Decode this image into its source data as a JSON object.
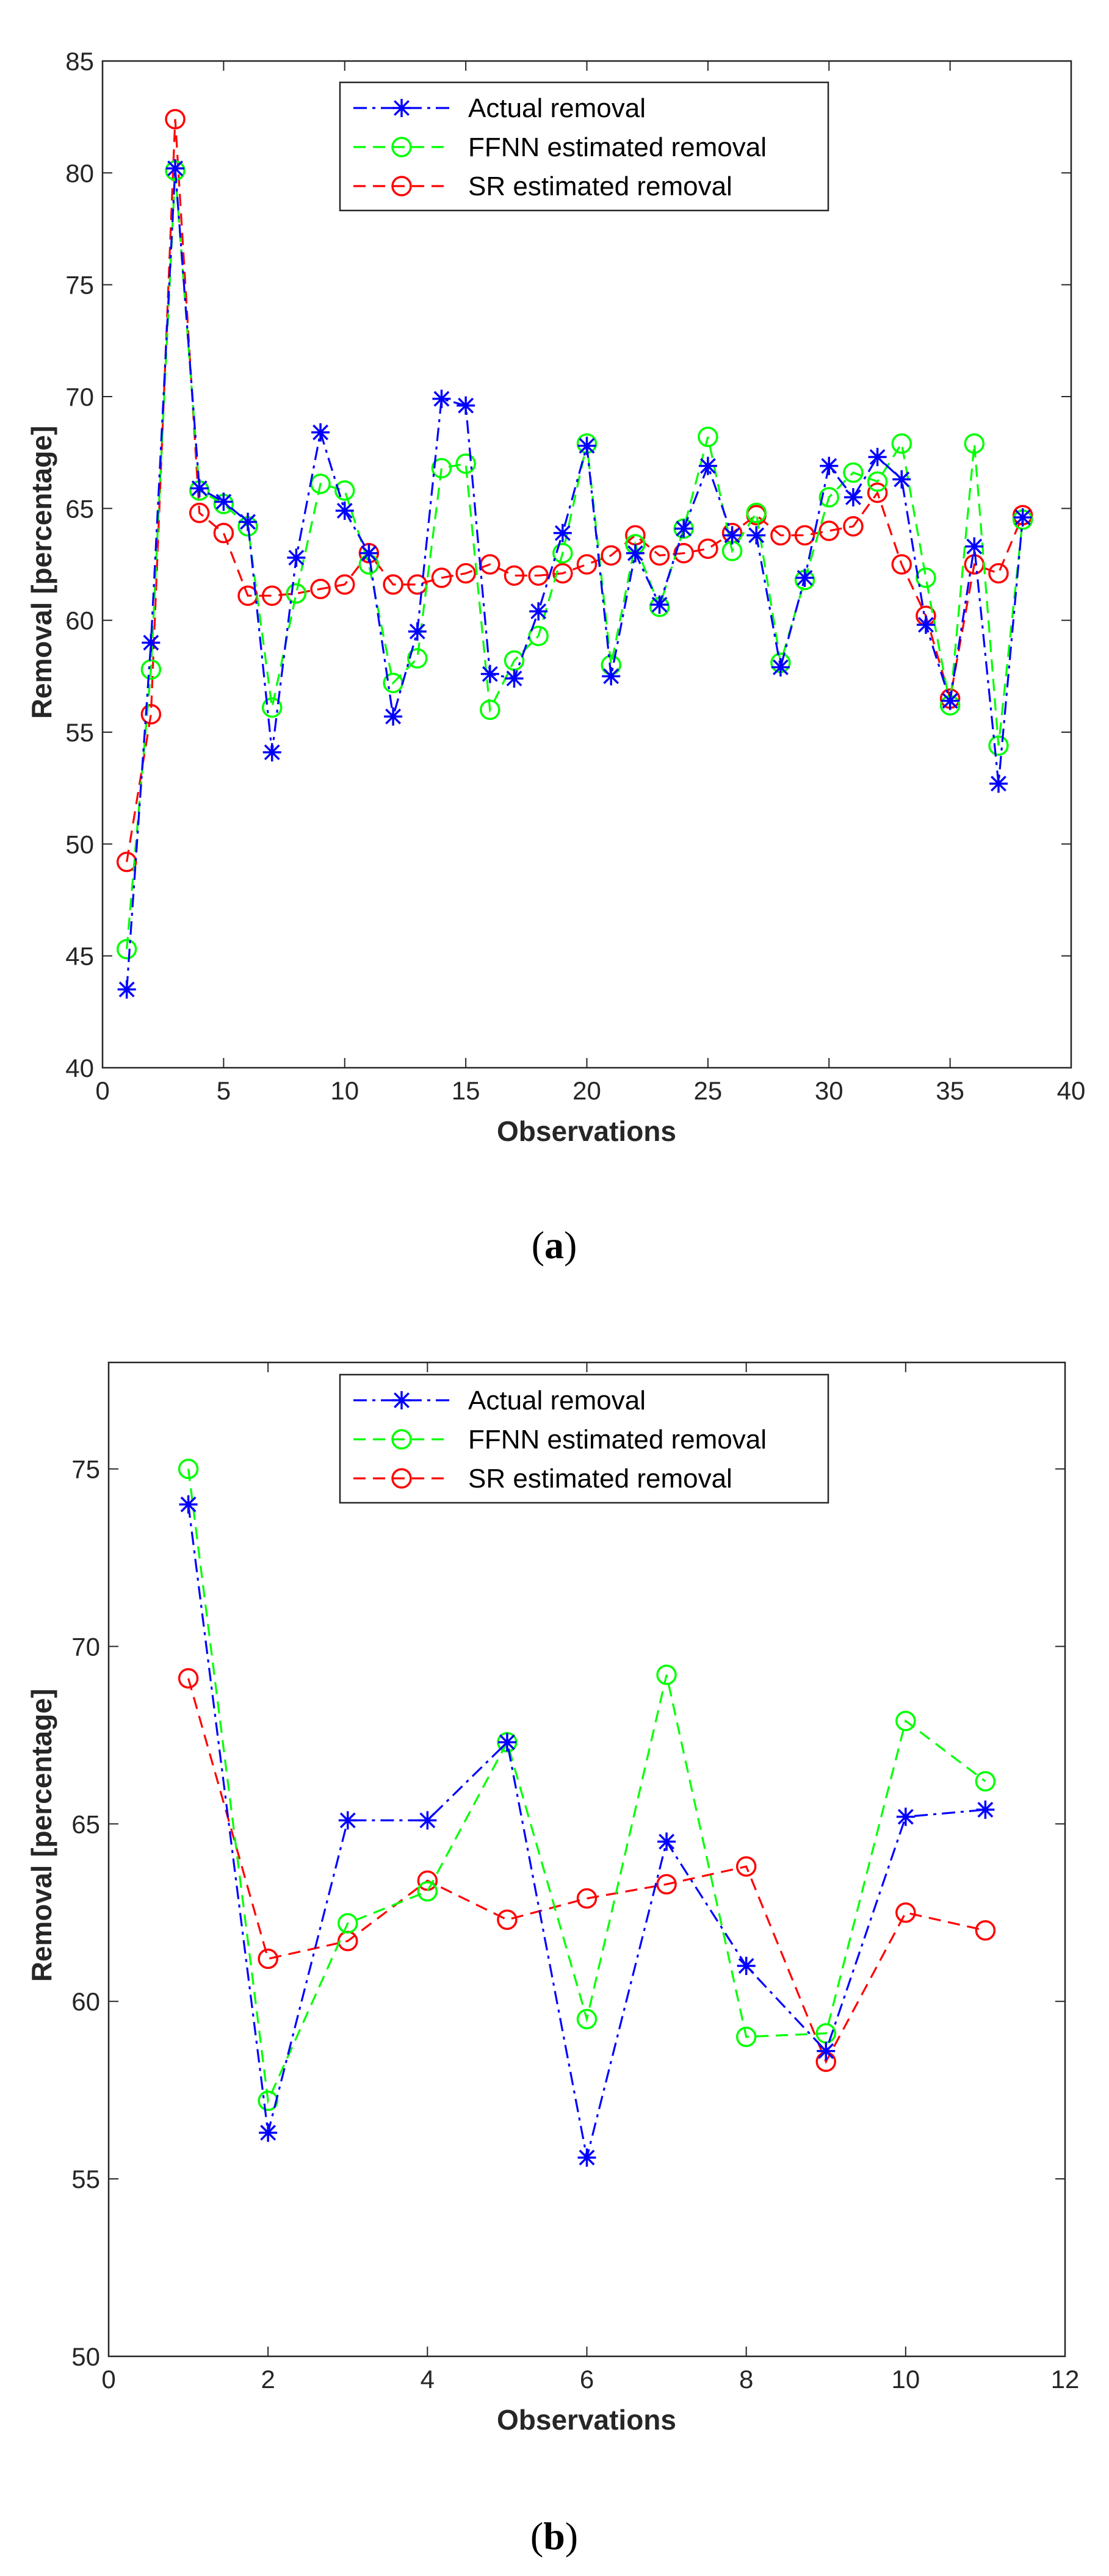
{
  "chart_data": [
    {
      "type": "line",
      "caption": "a",
      "xlabel": "Observations",
      "ylabel": "Removal [percentage]",
      "xlim": [
        0,
        40
      ],
      "ylim": [
        40,
        85
      ],
      "xticks": [
        0,
        5,
        10,
        15,
        20,
        25,
        30,
        35,
        40
      ],
      "yticks": [
        40,
        45,
        50,
        55,
        60,
        65,
        70,
        75,
        80,
        85
      ],
      "legend_position": "top-center",
      "x": [
        1,
        2,
        3,
        4,
        5,
        6,
        7,
        8,
        9,
        10,
        11,
        12,
        13,
        14,
        15,
        16,
        17,
        18,
        19,
        20,
        21,
        22,
        23,
        24,
        25,
        26,
        27,
        28,
        29,
        30,
        31,
        32,
        33,
        34,
        35,
        36,
        37,
        38
      ],
      "series": [
        {
          "name": "Actual removal",
          "color": "#0000ff",
          "marker": "asterisk",
          "line": "dashdot",
          "values": [
            43.5,
            59,
            80.2,
            65.9,
            65.3,
            64.4,
            54.1,
            62.8,
            68.4,
            64.9,
            63,
            55.7,
            59.5,
            69.9,
            69.6,
            57.6,
            57.4,
            60.4,
            63.9,
            67.8,
            57.5,
            63,
            60.7,
            64.1,
            66.9,
            63.8,
            63.8,
            57.9,
            61.9,
            66.9,
            65.5,
            67.3,
            66.3,
            59.8,
            56.4,
            63.3,
            52.7,
            64.6
          ]
        },
        {
          "name": "FFNN estimated removal",
          "color": "#00ff00",
          "marker": "circle",
          "line": "dashed",
          "values": [
            45.3,
            57.8,
            80.1,
            65.8,
            65.2,
            64.2,
            56.1,
            61.2,
            66.1,
            65.8,
            62.5,
            57.2,
            58.3,
            66.8,
            67,
            56,
            58.2,
            59.3,
            63,
            67.9,
            58,
            63.4,
            60.6,
            64.1,
            68.2,
            63.1,
            64.8,
            58.1,
            61.8,
            65.5,
            66.6,
            66.2,
            67.9,
            61.9,
            56.2,
            67.9,
            54.4,
            64.5
          ]
        },
        {
          "name": "SR estimated removal",
          "color": "#ff0000",
          "marker": "circle",
          "line": "dashed",
          "values": [
            49.2,
            55.8,
            82.4,
            64.8,
            63.9,
            61.1,
            61.1,
            61.2,
            61.4,
            61.6,
            63,
            61.6,
            61.6,
            61.9,
            62.1,
            62.5,
            62,
            62,
            62.1,
            62.5,
            62.9,
            63.8,
            62.9,
            63,
            63.2,
            63.9,
            64.7,
            63.8,
            63.8,
            64,
            64.2,
            65.7,
            62.5,
            60.2,
            56.5,
            62.5,
            62.1,
            64.7
          ]
        }
      ]
    },
    {
      "type": "line",
      "caption": "b",
      "xlabel": "Observations",
      "ylabel": "Removal [percentage]",
      "xlim": [
        0,
        12
      ],
      "ylim": [
        50,
        78
      ],
      "xticks": [
        0,
        2,
        4,
        6,
        8,
        10,
        12
      ],
      "yticks": [
        50,
        55,
        60,
        65,
        70,
        75
      ],
      "legend_position": "top-center",
      "x": [
        1,
        2,
        3,
        4,
        5,
        6,
        7,
        8,
        9,
        10,
        11
      ],
      "series": [
        {
          "name": "Actual removal",
          "color": "#0000ff",
          "marker": "asterisk",
          "line": "dashdot",
          "values": [
            74,
            56.3,
            65.1,
            65.1,
            67.3,
            55.6,
            64.5,
            61,
            58.6,
            65.2,
            65.4
          ]
        },
        {
          "name": "FFNN estimated removal",
          "color": "#00ff00",
          "marker": "circle",
          "line": "dashed",
          "values": [
            75,
            57.2,
            62.2,
            63.1,
            67.3,
            59.5,
            69.2,
            59,
            59.1,
            67.9,
            66.2
          ]
        },
        {
          "name": "SR estimated removal",
          "color": "#ff0000",
          "marker": "circle",
          "line": "dashed",
          "values": [
            69.1,
            61.2,
            61.7,
            63.4,
            62.3,
            62.9,
            63.3,
            63.8,
            58.3,
            62.5,
            62
          ]
        }
      ]
    }
  ]
}
